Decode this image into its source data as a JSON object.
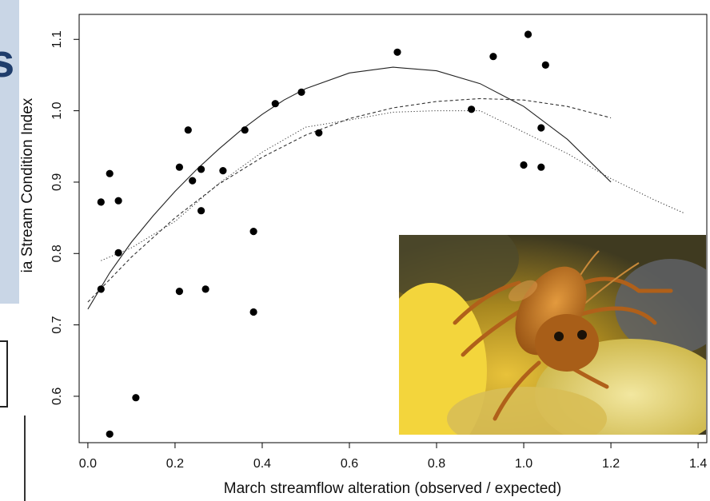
{
  "slide": {
    "title_fragment": "s"
  },
  "photo": {
    "subject": "stonefly-nymph-photo"
  },
  "chart_data": {
    "type": "scatter",
    "title": "",
    "xlabel": "March streamflow alteration (observed / expected)",
    "ylabel": "ia Stream Condition Index",
    "xlim": [
      -0.02,
      1.42
    ],
    "ylim": [
      0.535,
      1.135
    ],
    "x_ticks": [
      0.0,
      0.2,
      0.4,
      0.6,
      0.8,
      1.0,
      1.2,
      1.4
    ],
    "x_tick_labels": [
      "0.0",
      "0.2",
      "0.4",
      "0.6",
      "0.8",
      "1.0",
      "1.2",
      "1.4"
    ],
    "y_ticks": [
      0.6,
      0.7,
      0.8,
      0.9,
      1.0,
      1.1
    ],
    "y_tick_labels": [
      "0.6",
      "0.7",
      "0.8",
      "0.9",
      "1.0",
      "1.1"
    ],
    "grid": false,
    "points": [
      [
        0.03,
        0.872
      ],
      [
        0.05,
        0.912
      ],
      [
        0.07,
        0.874
      ],
      [
        0.07,
        0.801
      ],
      [
        0.03,
        0.75
      ],
      [
        0.05,
        0.547
      ],
      [
        0.11,
        0.598
      ],
      [
        0.21,
        0.921
      ],
      [
        0.23,
        0.973
      ],
      [
        0.24,
        0.902
      ],
      [
        0.26,
        0.918
      ],
      [
        0.26,
        0.86
      ],
      [
        0.21,
        0.747
      ],
      [
        0.27,
        0.75
      ],
      [
        0.31,
        0.916
      ],
      [
        0.36,
        0.973
      ],
      [
        0.38,
        0.831
      ],
      [
        0.38,
        0.718
      ],
      [
        0.43,
        1.01
      ],
      [
        0.49,
        1.026
      ],
      [
        0.53,
        0.969
      ],
      [
        0.71,
        1.082
      ],
      [
        0.88,
        1.002
      ],
      [
        0.93,
        1.076
      ],
      [
        1.0,
        0.924
      ],
      [
        1.01,
        1.107
      ],
      [
        1.04,
        0.976
      ],
      [
        1.04,
        0.921
      ],
      [
        1.05,
        1.064
      ]
    ],
    "series": [
      {
        "style": "solid",
        "x": [
          0.0,
          0.05,
          0.1,
          0.15,
          0.2,
          0.25,
          0.3,
          0.35,
          0.4,
          0.45,
          0.5,
          0.6,
          0.7,
          0.8,
          0.9,
          1.0,
          1.1,
          1.2
        ],
        "y": [
          0.722,
          0.773,
          0.816,
          0.853,
          0.887,
          0.918,
          0.946,
          0.972,
          0.995,
          1.015,
          1.031,
          1.053,
          1.061,
          1.056,
          1.038,
          1.006,
          0.96,
          0.9
        ]
      },
      {
        "style": "dashed",
        "x": [
          0.0,
          0.1,
          0.2,
          0.3,
          0.4,
          0.5,
          0.6,
          0.7,
          0.8,
          0.9,
          1.0,
          1.1,
          1.2
        ],
        "y": [
          0.732,
          0.795,
          0.85,
          0.897,
          0.935,
          0.966,
          0.989,
          1.004,
          1.013,
          1.017,
          1.015,
          1.006,
          0.99
        ]
      },
      {
        "style": "dotted",
        "x": [
          0.03,
          0.1,
          0.2,
          0.3,
          0.4,
          0.5,
          0.6,
          0.7,
          0.8,
          0.9,
          1.0,
          1.1,
          1.2,
          1.3,
          1.37
        ],
        "y": [
          0.79,
          0.808,
          0.845,
          0.898,
          0.942,
          0.977,
          0.987,
          0.998,
          1.0,
          1.0,
          0.97,
          0.94,
          0.905,
          0.875,
          0.856
        ]
      }
    ]
  }
}
